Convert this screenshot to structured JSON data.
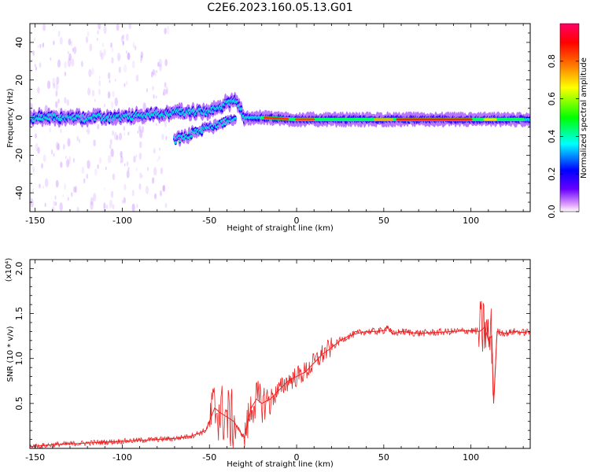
{
  "title": "C2E6.2023.160.05.13.G01",
  "chart_data": [
    {
      "type": "heatmap",
      "xlabel": "Height of straight line (km)",
      "ylabel": "Frequency (Hz)",
      "xlim": [
        -153,
        134
      ],
      "ylim": [
        -50,
        50
      ],
      "x_ticks": [
        -150,
        -100,
        -50,
        0,
        50,
        100
      ],
      "y_ticks": [
        -40,
        -20,
        0,
        20,
        40
      ],
      "colorbar": {
        "label": "Normalized spectral amplitude",
        "range": [
          0,
          1
        ],
        "ticks": [
          0.0,
          0.2,
          0.4,
          0.6,
          0.8
        ],
        "colors": [
          "#ffffff",
          "#cc88ff",
          "#4400ff",
          "#0000ff",
          "#00ffff",
          "#00ff00",
          "#ffff00",
          "#ff7700",
          "#ff0000",
          "#ff0066"
        ]
      },
      "ridge": [
        {
          "x": -153,
          "y": 0
        },
        {
          "x": -100,
          "y": 0
        },
        {
          "x": -80,
          "y": 2
        },
        {
          "x": -65,
          "y": 3
        },
        {
          "x": -50,
          "y": 3
        },
        {
          "x": -35,
          "y": 10
        },
        {
          "x": -30,
          "y": 0
        },
        {
          "x": -20,
          "y": 0
        },
        {
          "x": 0,
          "y": -1
        },
        {
          "x": 50,
          "y": -1
        },
        {
          "x": 100,
          "y": -1
        },
        {
          "x": 134,
          "y": -1
        }
      ],
      "secondary_ridge": [
        {
          "x": -70,
          "y": -12
        },
        {
          "x": -55,
          "y": -7
        },
        {
          "x": -45,
          "y": -3
        },
        {
          "x": -35,
          "y": -1
        }
      ]
    },
    {
      "type": "line",
      "xlabel": "Height of straight line (km)",
      "ylabel": "SNR (10 * v/v)",
      "y_multiplier": "(x10⁴)",
      "xlim": [
        -153,
        134
      ],
      "ylim": [
        0,
        2.1
      ],
      "x_ticks": [
        -150,
        -100,
        -50,
        0,
        50,
        100
      ],
      "y_ticks": [
        0.5,
        1.0,
        1.5,
        2.0
      ],
      "series": [
        {
          "color": "#ee2222",
          "x": [
            -153,
            -140,
            -130,
            -120,
            -110,
            -100,
            -90,
            -80,
            -70,
            -60,
            -52,
            -47,
            -44,
            -40,
            -36,
            -33,
            -30,
            -26,
            -23,
            -20,
            -15,
            -10,
            -5,
            0,
            5,
            10,
            15,
            20,
            25,
            30,
            35,
            40,
            45,
            50,
            52,
            55,
            60,
            65,
            70,
            80,
            90,
            100,
            105,
            108,
            110,
            112,
            113,
            115,
            120,
            125,
            130,
            134
          ],
          "y": [
            0.02,
            0.04,
            0.05,
            0.06,
            0.07,
            0.08,
            0.09,
            0.1,
            0.11,
            0.14,
            0.2,
            0.45,
            0.4,
            0.35,
            0.3,
            0.2,
            0.12,
            0.45,
            0.55,
            0.5,
            0.55,
            0.65,
            0.75,
            0.8,
            0.85,
            0.95,
            1.05,
            1.12,
            1.2,
            1.25,
            1.28,
            1.3,
            1.3,
            1.31,
            1.36,
            1.27,
            1.3,
            1.29,
            1.28,
            1.29,
            1.3,
            1.31,
            1.3,
            1.35,
            1.2,
            1.25,
            0.5,
            1.3,
            1.28,
            1.3,
            1.29,
            1.3
          ]
        }
      ]
    }
  ]
}
